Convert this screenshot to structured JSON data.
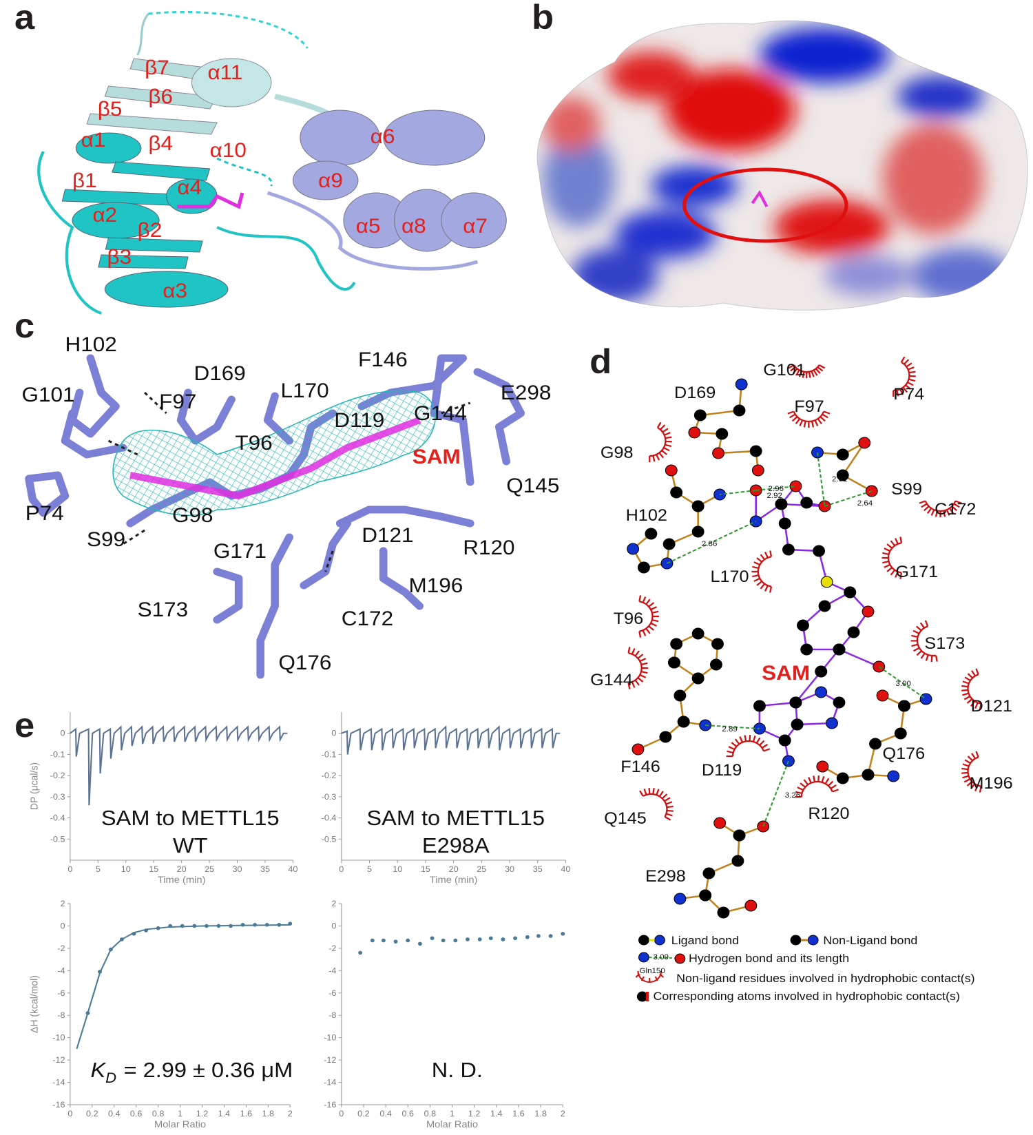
{
  "panel_labels": [
    "a",
    "b",
    "c",
    "d",
    "e"
  ],
  "panel_a": {
    "labels": [
      "β7",
      "α11",
      "β6",
      "β5",
      "α1",
      "β4",
      "α10",
      "α6",
      "α9",
      "β1",
      "α2",
      "α4",
      "β2",
      "α5",
      "α8",
      "α7",
      "β3",
      "α3"
    ]
  },
  "panel_c": {
    "residues": [
      "H102",
      "D169",
      "G101",
      "F97",
      "L170",
      "F146",
      "E298",
      "D119",
      "G144",
      "T96",
      "Q145",
      "P74",
      "G98",
      "D121",
      "R120",
      "S99",
      "G171",
      "M196",
      "S173",
      "C172",
      "Q176"
    ],
    "ligand": "SAM"
  },
  "panel_d": {
    "residues": [
      "G101",
      "D169",
      "P74",
      "F97",
      "G98",
      "S99",
      "C172",
      "H102",
      "L170",
      "G171",
      "T96",
      "S173",
      "G144",
      "D121",
      "F146",
      "D119",
      "Q176",
      "M196",
      "Q145",
      "R120",
      "E298"
    ],
    "ligand": "SAM",
    "distances": [
      "2.96",
      "2.92",
      "2.91",
      "2.64",
      "2.86",
      "3.00",
      "2.89",
      "3.26"
    ],
    "legend": {
      "ligand_bond": "Ligand bond",
      "non_ligand_bond": "Non-Ligand bond",
      "example_length": "3.09",
      "hydrogen_bond": "Hydrogen bond and its length",
      "example_residue": "Gln150",
      "hydrophobic_residues": "Non-ligand residues involved in hydrophobic contact(s)",
      "hydrophobic_atoms": "Corresponding atoms involved in hydrophobic contact(s)"
    }
  },
  "chart_data": [
    {
      "type": "line",
      "ylabel": "DP (μcal/s)",
      "xlabel": "Time (min)",
      "x": [
        0,
        1.0,
        1.1,
        1.7,
        3.3,
        3.4,
        4.0,
        5.3,
        5.4,
        6.0,
        7.2,
        7.3,
        7.9,
        9.1,
        9.2,
        9.8,
        11.0,
        11.1,
        11.7,
        12.9,
        13.0,
        13.6,
        14.8,
        14.9,
        15.5,
        16.7,
        16.8,
        17.4,
        18.6,
        18.7,
        19.3,
        20.5,
        20.6,
        21.2,
        22.4,
        22.5,
        23.1,
        24.3,
        24.4,
        25.0,
        26.2,
        26.3,
        26.9,
        28.1,
        28.2,
        28.8,
        30.0,
        30.1,
        30.7,
        31.9,
        32.0,
        32.6,
        33.8,
        33.9,
        34.5,
        35.7,
        35.8,
        36.4,
        37.6,
        37.7,
        38.3,
        39.0
      ],
      "series": [
        {
          "color": "#5b7393",
          "values": [
            0,
            0.02,
            -0.11,
            0,
            0.02,
            -0.34,
            0,
            0.02,
            -0.19,
            0,
            0.02,
            -0.12,
            0,
            0.03,
            -0.08,
            0,
            0.03,
            -0.06,
            0,
            0.03,
            -0.05,
            0,
            0.03,
            -0.05,
            0,
            0.03,
            -0.04,
            0,
            0.03,
            -0.04,
            0,
            0.03,
            -0.04,
            0,
            0.03,
            -0.04,
            0,
            0.03,
            -0.03,
            0,
            0.03,
            -0.03,
            0,
            0.03,
            -0.03,
            0,
            0.03,
            -0.03,
            0,
            0.03,
            -0.03,
            0,
            0.03,
            -0.03,
            0,
            0.03,
            -0.03,
            0,
            0.03,
            -0.03,
            0,
            0
          ]
        }
      ],
      "xlim": [
        0,
        40
      ],
      "ylim": [
        -0.6,
        0.1
      ],
      "xticks": [
        0,
        5,
        10,
        15,
        20,
        25,
        30,
        35,
        40
      ],
      "yticks": [
        0,
        -0.1,
        -0.2,
        -0.3,
        -0.4,
        -0.5
      ],
      "annotations": [
        "SAM to METTL15",
        "WT"
      ]
    },
    {
      "type": "line",
      "xlabel": "Time (min)",
      "x": [
        0,
        1.0,
        1.1,
        1.7,
        3.3,
        3.4,
        4.0,
        5.3,
        5.4,
        6.0,
        7.2,
        7.3,
        7.9,
        9.1,
        9.2,
        9.8,
        11.0,
        11.1,
        11.7,
        12.9,
        13.0,
        13.6,
        14.8,
        14.9,
        15.5,
        16.7,
        16.8,
        17.4,
        18.6,
        18.7,
        19.3,
        20.5,
        20.6,
        21.2,
        22.4,
        22.5,
        23.1,
        24.3,
        24.4,
        25.0,
        26.2,
        26.3,
        26.9,
        28.1,
        28.2,
        28.8,
        30.0,
        30.1,
        30.7,
        31.9,
        32.0,
        32.6,
        33.8,
        33.9,
        34.5,
        35.7,
        35.8,
        36.4,
        37.6,
        37.7,
        38.3,
        39.0
      ],
      "series": [
        {
          "color": "#5b7393",
          "values": [
            0,
            0.01,
            -0.1,
            0,
            0.02,
            -0.08,
            0,
            0.02,
            -0.08,
            0,
            0.02,
            -0.08,
            0,
            0.02,
            -0.07,
            0,
            0.02,
            -0.08,
            0,
            0.02,
            -0.07,
            0,
            0.02,
            -0.08,
            0,
            0.02,
            -0.07,
            0,
            0.03,
            -0.07,
            0,
            0.02,
            -0.07,
            0,
            0.02,
            -0.08,
            0,
            0.02,
            -0.07,
            0,
            0.02,
            -0.07,
            0,
            0.03,
            -0.08,
            0,
            0.02,
            -0.07,
            0,
            0.02,
            -0.07,
            0,
            0.02,
            -0.07,
            0,
            0.02,
            -0.07,
            0,
            0.02,
            -0.07,
            0,
            0
          ]
        }
      ],
      "xlim": [
        0,
        40
      ],
      "ylim": [
        -0.6,
        0.1
      ],
      "xticks": [
        0,
        5,
        10,
        15,
        20,
        25,
        30,
        35,
        40
      ],
      "yticks": [
        0,
        -0.1,
        -0.2,
        -0.3,
        -0.4,
        -0.5
      ],
      "annotations": [
        "SAM to METTL15",
        "E298A"
      ]
    },
    {
      "type": "scatter",
      "ylabel": "ΔH (kcal/mol)",
      "xlabel": "Molar Ratio",
      "series": [
        {
          "color": "#4a7a96",
          "x": [
            0.16,
            0.27,
            0.37,
            0.47,
            0.58,
            0.69,
            0.8,
            0.91,
            1.02,
            1.13,
            1.24,
            1.35,
            1.46,
            1.57,
            1.68,
            1.79,
            1.9,
            2.0
          ],
          "values": [
            -7.8,
            -4.1,
            -2.1,
            -1.2,
            -0.7,
            -0.4,
            -0.2,
            0,
            0,
            0,
            0,
            0,
            0,
            0.1,
            0.1,
            0.1,
            0.1,
            0.2
          ]
        },
        {
          "type": "line",
          "color": "#4a7a96",
          "x": [
            0.06,
            0.16,
            0.27,
            0.37,
            0.47,
            0.58,
            0.7,
            0.9,
            1.2,
            1.6,
            2.0
          ],
          "values": [
            -11,
            -7.8,
            -4.2,
            -2.1,
            -1.2,
            -0.6,
            -0.3,
            -0.1,
            0,
            0.05,
            0.1
          ]
        }
      ],
      "xlim": [
        0,
        2
      ],
      "ylim": [
        -16,
        2
      ],
      "xticks": [
        0,
        0.2,
        0.4,
        0.6,
        0.8,
        1,
        1.2,
        1.4,
        1.6,
        1.8,
        2
      ],
      "yticks": [
        2,
        0,
        -2,
        -4,
        -6,
        -8,
        -10,
        -12,
        -14,
        -16
      ],
      "annotation": {
        "symbol": "K",
        "subscript": "D",
        "text": "= 2.99 ± 0.36 μM"
      }
    },
    {
      "type": "scatter",
      "xlabel": "Molar Ratio",
      "series": [
        {
          "color": "#4a7a96",
          "x": [
            0.17,
            0.28,
            0.38,
            0.49,
            0.6,
            0.71,
            0.82,
            0.92,
            1.03,
            1.14,
            1.25,
            1.35,
            1.46,
            1.57,
            1.68,
            1.78,
            1.89,
            2.0
          ],
          "values": [
            -2.4,
            -1.3,
            -1.3,
            -1.4,
            -1.3,
            -1.6,
            -1.1,
            -1.3,
            -1.3,
            -1.2,
            -1.2,
            -1.1,
            -1.2,
            -1.1,
            -1.0,
            -0.9,
            -0.9,
            -0.7
          ]
        }
      ],
      "xlim": [
        0,
        2
      ],
      "ylim": [
        -16,
        2
      ],
      "xticks": [
        0,
        0.2,
        0.4,
        0.6,
        0.8,
        1,
        1.2,
        1.4,
        1.6,
        1.8,
        2
      ],
      "yticks": [
        2,
        0,
        -2,
        -4,
        -6,
        -8,
        -10,
        -12,
        -14,
        -16
      ],
      "annotations": [
        "N. D."
      ]
    }
  ]
}
